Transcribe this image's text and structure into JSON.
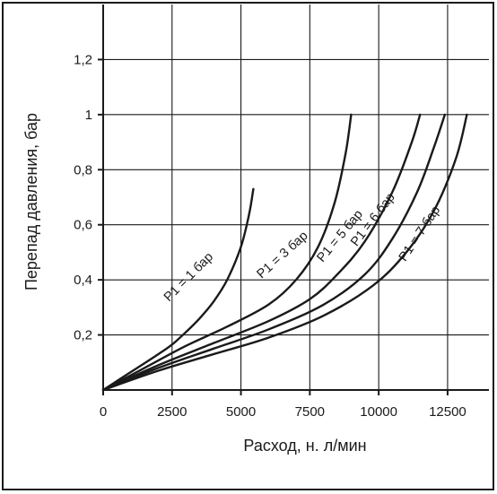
{
  "chart_data": {
    "type": "line",
    "xlabel": "Расход, н. л/мин",
    "ylabel": "Перепад давления, бар",
    "xlim": [
      0,
      14000
    ],
    "ylim": [
      0,
      1.4
    ],
    "x_ticks": [
      {
        "value": 0,
        "label": "0"
      },
      {
        "value": 2500,
        "label": "2500"
      },
      {
        "value": 5000,
        "label": "5000"
      },
      {
        "value": 7500,
        "label": "7500"
      },
      {
        "value": 10000,
        "label": "10000"
      },
      {
        "value": 12500,
        "label": "12500"
      }
    ],
    "y_ticks": [
      {
        "value": 0.2,
        "label": "0,2"
      },
      {
        "value": 0.4,
        "label": "0,4"
      },
      {
        "value": 0.6,
        "label": "0,6"
      },
      {
        "value": 0.8,
        "label": "0,8"
      },
      {
        "value": 1.0,
        "label": "1"
      },
      {
        "value": 1.2,
        "label": "1,2"
      }
    ],
    "grid": true,
    "series": [
      {
        "name": "P1 = 1 бар",
        "label_anchor": {
          "x": 3200,
          "y": 0.4
        },
        "points": [
          {
            "x": 0,
            "y": 0
          },
          {
            "x": 1000,
            "y": 0.065
          },
          {
            "x": 2000,
            "y": 0.13
          },
          {
            "x": 2500,
            "y": 0.165
          },
          {
            "x": 3000,
            "y": 0.21
          },
          {
            "x": 3500,
            "y": 0.26
          },
          {
            "x": 4000,
            "y": 0.32
          },
          {
            "x": 4500,
            "y": 0.4
          },
          {
            "x": 5000,
            "y": 0.52
          },
          {
            "x": 5300,
            "y": 0.64
          },
          {
            "x": 5450,
            "y": 0.73
          }
        ]
      },
      {
        "name": "P1 = 3 бар",
        "label_anchor": {
          "x": 6600,
          "y": 0.48
        },
        "points": [
          {
            "x": 0,
            "y": 0
          },
          {
            "x": 1500,
            "y": 0.08
          },
          {
            "x": 3000,
            "y": 0.16
          },
          {
            "x": 4500,
            "y": 0.23
          },
          {
            "x": 6000,
            "y": 0.31
          },
          {
            "x": 7000,
            "y": 0.4
          },
          {
            "x": 7800,
            "y": 0.52
          },
          {
            "x": 8400,
            "y": 0.68
          },
          {
            "x": 8800,
            "y": 0.86
          },
          {
            "x": 9000,
            "y": 1.0
          }
        ]
      },
      {
        "name": "P1 = 5 бар",
        "label_anchor": {
          "x": 8700,
          "y": 0.55
        },
        "points": [
          {
            "x": 0,
            "y": 0
          },
          {
            "x": 2000,
            "y": 0.09
          },
          {
            "x": 4000,
            "y": 0.17
          },
          {
            "x": 6000,
            "y": 0.25
          },
          {
            "x": 7500,
            "y": 0.33
          },
          {
            "x": 8500,
            "y": 0.42
          },
          {
            "x": 9500,
            "y": 0.54
          },
          {
            "x": 10500,
            "y": 0.72
          },
          {
            "x": 11200,
            "y": 0.9
          },
          {
            "x": 11500,
            "y": 1.0
          }
        ]
      },
      {
        "name": "P1 = 6 бар",
        "label_anchor": {
          "x": 9900,
          "y": 0.61
        },
        "points": [
          {
            "x": 0,
            "y": 0
          },
          {
            "x": 2000,
            "y": 0.08
          },
          {
            "x": 4000,
            "y": 0.15
          },
          {
            "x": 6000,
            "y": 0.22
          },
          {
            "x": 8000,
            "y": 0.31
          },
          {
            "x": 9500,
            "y": 0.42
          },
          {
            "x": 10500,
            "y": 0.55
          },
          {
            "x": 11400,
            "y": 0.72
          },
          {
            "x": 12000,
            "y": 0.88
          },
          {
            "x": 12400,
            "y": 1.0
          }
        ]
      },
      {
        "name": "P1 = 7 бар",
        "label_anchor": {
          "x": 11600,
          "y": 0.56
        },
        "points": [
          {
            "x": 0,
            "y": 0
          },
          {
            "x": 2000,
            "y": 0.07
          },
          {
            "x": 4000,
            "y": 0.13
          },
          {
            "x": 6000,
            "y": 0.19
          },
          {
            "x": 8000,
            "y": 0.27
          },
          {
            "x": 9800,
            "y": 0.38
          },
          {
            "x": 11000,
            "y": 0.5
          },
          {
            "x": 12000,
            "y": 0.65
          },
          {
            "x": 12800,
            "y": 0.84
          },
          {
            "x": 13200,
            "y": 1.0
          }
        ]
      }
    ]
  }
}
